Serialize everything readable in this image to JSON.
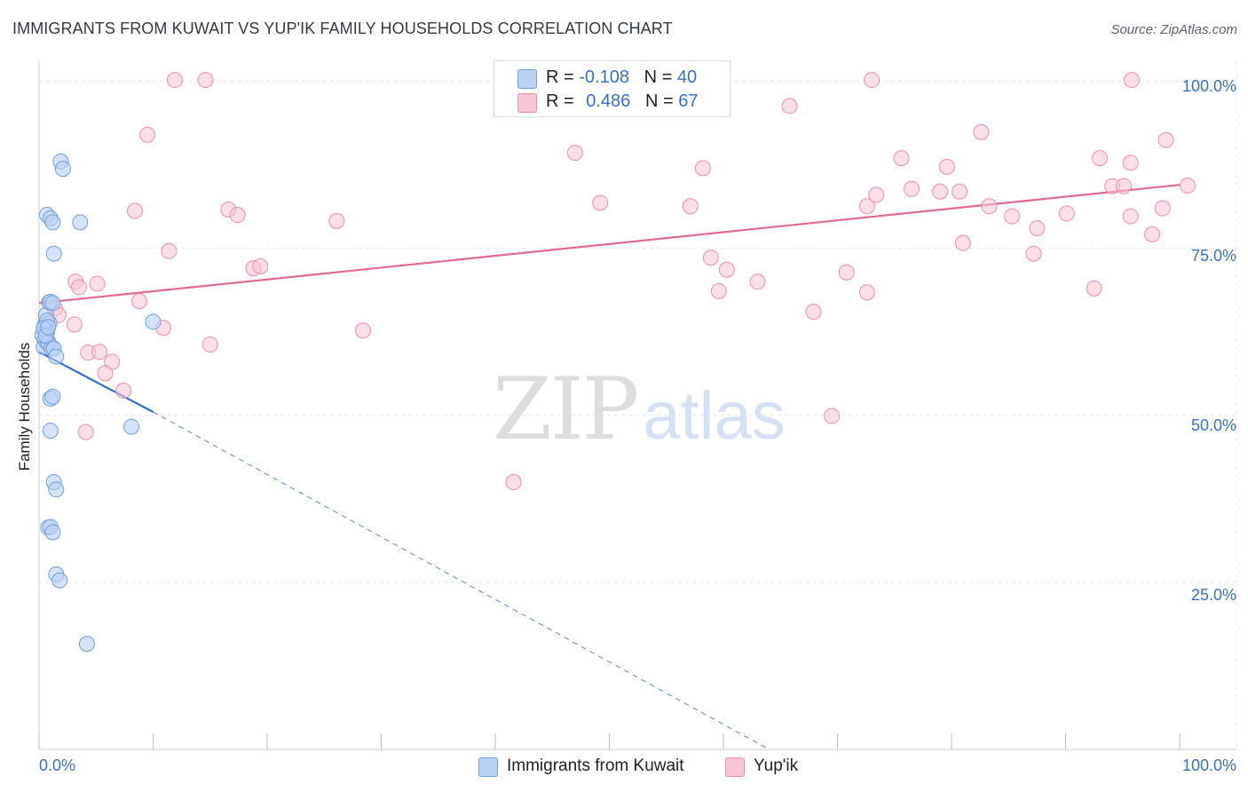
{
  "title": "IMMIGRANTS FROM KUWAIT VS YUP'IK FAMILY HOUSEHOLDS CORRELATION CHART",
  "source": "Source: ZipAtlas.com",
  "watermark": {
    "zip": "ZIP",
    "atlas": "atlas"
  },
  "legend": {
    "series1": {
      "r_label": "R = ",
      "r_value": "-0.108",
      "n_label": "N = ",
      "n_value": "40"
    },
    "series2": {
      "r_label": "R = ",
      "r_value": "0.486",
      "n_label": "N = ",
      "n_value": "67"
    }
  },
  "bottom_legend": {
    "series1": "Immigrants from Kuwait",
    "series2": "Yup'ik"
  },
  "colors": {
    "blue_fill": "#b9d1f3",
    "blue_stroke": "#6f9fe0",
    "blue_line": "#2f6fd0",
    "pink_fill": "#f7c5d4",
    "pink_stroke": "#ea8fae",
    "pink_line": "#e06a92",
    "grid": "#dfe3e8",
    "axis_text": "#3a6fc6"
  },
  "chart_data": {
    "type": "scatter",
    "title": "IMMIGRANTS FROM KUWAIT VS YUP'IK FAMILY HOUSEHOLDS CORRELATION CHART",
    "xlabel": "",
    "ylabel": "Family Households",
    "xlim": [
      0,
      100
    ],
    "ylim": [
      0,
      103
    ],
    "x_tick_labels": [
      "0.0%",
      "100.0%"
    ],
    "y_tick_labels": [
      "25.0%",
      "50.0%",
      "75.0%",
      "100.0%"
    ],
    "y_ticks": [
      25,
      50,
      75,
      100
    ],
    "grid": true,
    "series": [
      {
        "name": "Immigrants from Kuwait",
        "color": "#6f9fe0",
        "R": -0.108,
        "N": 40,
        "trend": {
          "x0": 0,
          "y0": 59.5,
          "x1": 10,
          "y1": 50.5,
          "dash_x1": 64,
          "dash_y1": 0
        },
        "points": [
          [
            0.5,
            63.5
          ],
          [
            0.6,
            65.0
          ],
          [
            0.7,
            62.5
          ],
          [
            0.8,
            61.0
          ],
          [
            0.9,
            63.8
          ],
          [
            0.4,
            60.2
          ],
          [
            0.6,
            62.8
          ],
          [
            0.7,
            64.2
          ],
          [
            0.5,
            61.4
          ],
          [
            0.9,
            66.9
          ],
          [
            1.0,
            67.0
          ],
          [
            1.2,
            66.8
          ],
          [
            0.8,
            60.8
          ],
          [
            1.1,
            60.0
          ],
          [
            1.3,
            60.0
          ],
          [
            1.5,
            58.8
          ],
          [
            0.7,
            80.0
          ],
          [
            1.0,
            79.5
          ],
          [
            1.2,
            78.9
          ],
          [
            3.6,
            78.9
          ],
          [
            1.3,
            74.2
          ],
          [
            1.9,
            88.0
          ],
          [
            2.1,
            86.9
          ],
          [
            10.0,
            64.0
          ],
          [
            1.0,
            52.5
          ],
          [
            1.2,
            52.8
          ],
          [
            1.0,
            47.7
          ],
          [
            8.1,
            48.3
          ],
          [
            1.3,
            40.0
          ],
          [
            1.5,
            38.9
          ],
          [
            0.8,
            33.2
          ],
          [
            1.0,
            33.3
          ],
          [
            1.2,
            32.5
          ],
          [
            1.5,
            26.2
          ],
          [
            1.8,
            25.3
          ],
          [
            4.2,
            15.8
          ],
          [
            0.3,
            62.0
          ],
          [
            0.4,
            63.0
          ],
          [
            0.6,
            61.9
          ],
          [
            0.8,
            63.2
          ]
        ]
      },
      {
        "name": "Yup'ik",
        "color": "#ea8fae",
        "R": 0.486,
        "N": 67,
        "trend": {
          "x0": 0,
          "y0": 66.8,
          "x1": 100,
          "y1": 84.5
        },
        "points": [
          [
            11.9,
            100.2
          ],
          [
            14.6,
            100.2
          ],
          [
            95.8,
            100.2
          ],
          [
            73.0,
            100.2
          ],
          [
            9.5,
            92.0
          ],
          [
            65.8,
            96.3
          ],
          [
            82.6,
            92.4
          ],
          [
            98.8,
            91.2
          ],
          [
            75.6,
            88.5
          ],
          [
            79.6,
            87.2
          ],
          [
            58.2,
            87.0
          ],
          [
            95.7,
            87.8
          ],
          [
            93.0,
            88.5
          ],
          [
            100.7,
            84.4
          ],
          [
            47.0,
            89.3
          ],
          [
            76.5,
            83.9
          ],
          [
            79.0,
            83.5
          ],
          [
            80.7,
            83.5
          ],
          [
            73.4,
            83.0
          ],
          [
            49.2,
            81.8
          ],
          [
            57.1,
            81.3
          ],
          [
            72.6,
            81.3
          ],
          [
            94.1,
            84.3
          ],
          [
            95.1,
            84.3
          ],
          [
            83.3,
            81.3
          ],
          [
            85.3,
            79.8
          ],
          [
            90.1,
            80.2
          ],
          [
            95.7,
            79.8
          ],
          [
            98.5,
            81.0
          ],
          [
            8.4,
            80.6
          ],
          [
            16.6,
            80.8
          ],
          [
            17.4,
            80.0
          ],
          [
            26.1,
            79.1
          ],
          [
            97.6,
            77.1
          ],
          [
            87.5,
            78.0
          ],
          [
            81.0,
            75.8
          ],
          [
            87.2,
            74.2
          ],
          [
            11.4,
            74.6
          ],
          [
            58.9,
            73.6
          ],
          [
            60.3,
            71.8
          ],
          [
            18.8,
            72.0
          ],
          [
            19.4,
            72.3
          ],
          [
            70.8,
            71.4
          ],
          [
            63.0,
            70.0
          ],
          [
            3.2,
            70.0
          ],
          [
            3.5,
            69.2
          ],
          [
            5.1,
            69.7
          ],
          [
            92.5,
            69.0
          ],
          [
            59.6,
            68.6
          ],
          [
            72.6,
            68.4
          ],
          [
            8.8,
            67.1
          ],
          [
            1.4,
            66.0
          ],
          [
            1.7,
            65.0
          ],
          [
            67.9,
            65.5
          ],
          [
            3.1,
            63.6
          ],
          [
            10.9,
            63.1
          ],
          [
            28.4,
            62.7
          ],
          [
            0.7,
            60.7
          ],
          [
            15.0,
            60.6
          ],
          [
            4.3,
            59.4
          ],
          [
            5.3,
            59.5
          ],
          [
            6.4,
            58.0
          ],
          [
            5.8,
            56.3
          ],
          [
            7.4,
            53.7
          ],
          [
            4.1,
            47.5
          ],
          [
            69.5,
            49.9
          ],
          [
            41.6,
            40.0
          ]
        ]
      }
    ]
  }
}
